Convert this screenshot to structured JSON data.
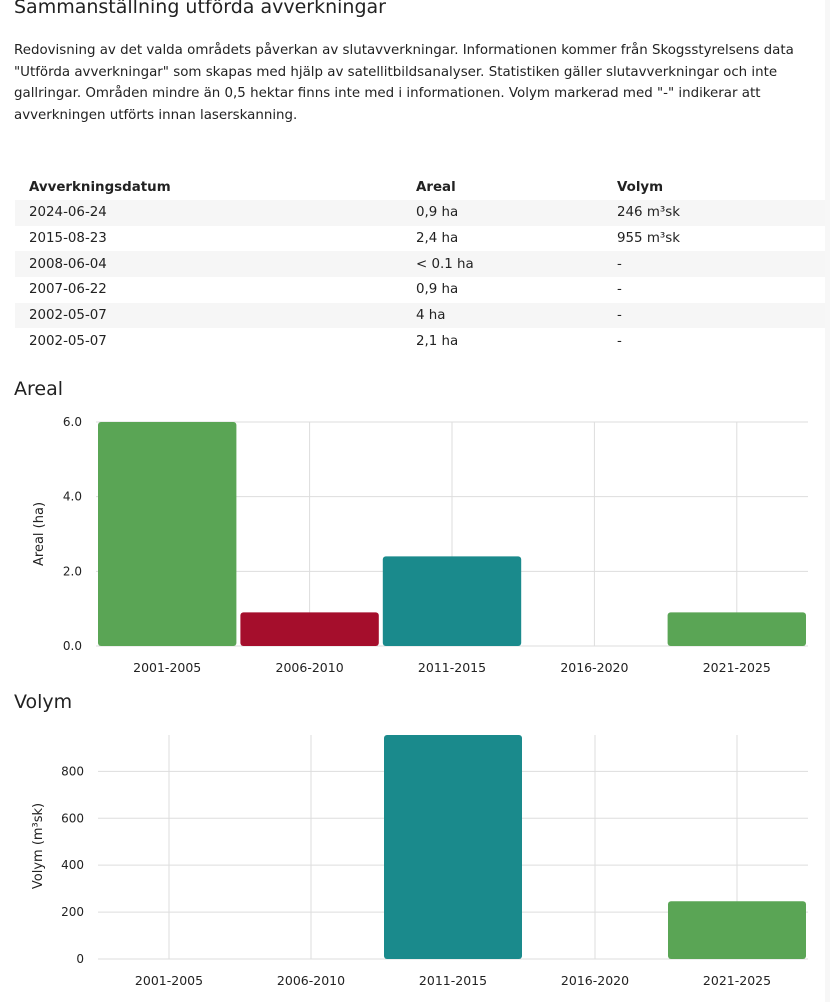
{
  "page": {
    "title": "Sammanställning utförda avverkningar",
    "description": "Redovisning av det valda områdets påverkan av slutavverkningar. Informationen kommer från Skogsstyrelsens data \"Utförda avverkningar\" som skapas med hjälp av satellitbildsanalyser. Statistiken gäller slutavverkningar och inte gallringar. Områden mindre än 0,5 hektar finns inte med i informationen. Volym markerad med \"-\" indikerar att avverkningen utförts innan laserskanning."
  },
  "table": {
    "headers": [
      "Avverkningsdatum",
      "Areal",
      "Volym"
    ],
    "rows": [
      [
        "2024-06-24",
        "0,9 ha",
        "246 m³sk"
      ],
      [
        "2015-08-23",
        "2,4 ha",
        "955 m³sk"
      ],
      [
        "2008-06-04",
        "< 0.1 ha",
        "-"
      ],
      [
        "2007-06-22",
        "0,9 ha",
        "-"
      ],
      [
        "2002-05-07",
        "4 ha",
        "-"
      ],
      [
        "2002-05-07",
        "2,1 ha",
        "-"
      ]
    ]
  },
  "colors": {
    "green": "#5aa555",
    "red": "#a50e2c",
    "teal": "#1a8a8c",
    "grid": "#dddddd"
  },
  "chart_data": [
    {
      "type": "bar",
      "title": "Areal",
      "ylabel": "Areal (ha)",
      "xlabel": "",
      "categories": [
        "2001-2005",
        "2006-2010",
        "2011-2015",
        "2016-2020",
        "2021-2025"
      ],
      "values": [
        6.0,
        0.9,
        2.4,
        0,
        0.9
      ],
      "bar_colors": [
        "#5aa555",
        "#a50e2c",
        "#1a8a8c",
        "#5aa555",
        "#5aa555"
      ],
      "ylim": [
        0,
        6
      ],
      "yticks": [
        "0.0",
        "2.0",
        "4.0",
        "6.0"
      ],
      "grid": true,
      "legend": "none"
    },
    {
      "type": "bar",
      "title": "Volym",
      "ylabel": "Volym (m³sk)",
      "xlabel": "",
      "categories": [
        "2001-2005",
        "2006-2010",
        "2011-2015",
        "2016-2020",
        "2021-2025"
      ],
      "values": [
        0,
        0,
        955,
        0,
        246
      ],
      "bar_colors": [
        "#5aa555",
        "#a50e2c",
        "#1a8a8c",
        "#5aa555",
        "#5aa555"
      ],
      "ylim": [
        0,
        955
      ],
      "yticks": [
        "0",
        "200",
        "400",
        "600",
        "800"
      ],
      "grid": true,
      "legend": "none"
    }
  ]
}
